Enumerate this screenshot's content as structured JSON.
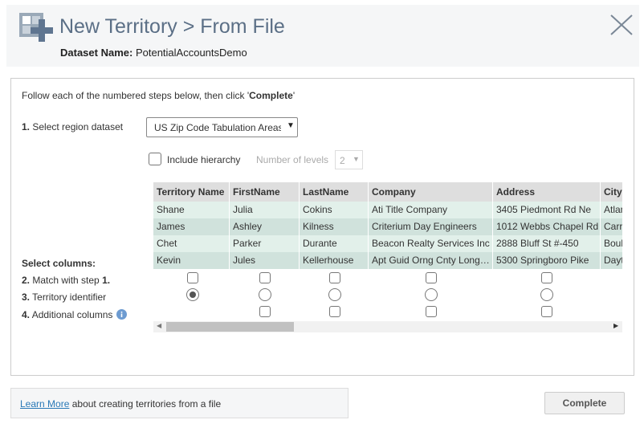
{
  "header": {
    "title": "New Territory > From File",
    "dataset_label": "Dataset Name:",
    "dataset_name": "PotentialAccountsDemo"
  },
  "instructions": {
    "before": "Follow each of the numbered steps below, then click '",
    "bold": "Complete",
    "after": "'"
  },
  "step1": {
    "number": "1.",
    "label": "Select region dataset",
    "selected": "US Zip Code Tabulation Areas"
  },
  "hierarchy": {
    "label": "Include hierarchy",
    "levels_label": "Number of levels",
    "levels_value": "2"
  },
  "table": {
    "columns": [
      "Territory Name",
      "FirstName",
      "LastName",
      "Company",
      "Address",
      "City"
    ],
    "rows": [
      [
        "Shane",
        "Julia",
        "Cokins",
        "Ati Title Company",
        "3405 Piedmont Rd Ne",
        "Atlan"
      ],
      [
        "James",
        "Ashley",
        "Kilness",
        "Criterium Day Engineers",
        "1012 Webbs Chapel Rd",
        "Carro"
      ],
      [
        "Chet",
        "Parker",
        "Durante",
        "Beacon Realty Services Inc",
        "2888 Bluff St #-450",
        "Bould"
      ],
      [
        "Kevin",
        "Jules",
        "Kellerhouse",
        "Apt Guid Orng Cnty Long…",
        "5300 Springboro Pike",
        "Dayto"
      ]
    ]
  },
  "select_columns": {
    "title": "Select columns:",
    "steps": [
      {
        "number": "2.",
        "label": "Match with step",
        "ref": "1."
      },
      {
        "number": "3.",
        "label": "Territory identifier"
      },
      {
        "number": "4.",
        "label": "Additional columns"
      }
    ]
  },
  "footer": {
    "link": "Learn More",
    "text": "about creating territories from a file",
    "button": "Complete"
  }
}
